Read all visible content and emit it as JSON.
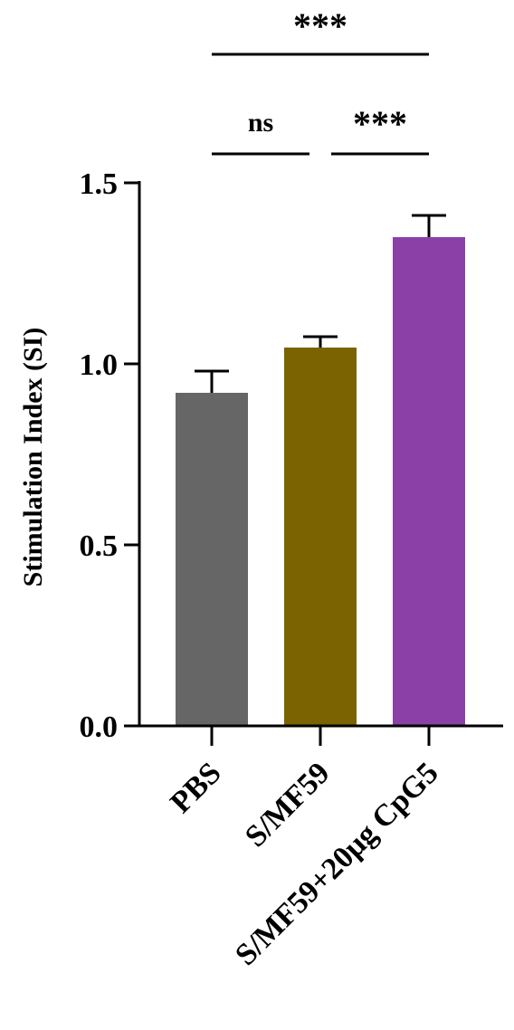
{
  "chart_data": {
    "type": "bar",
    "title": "",
    "xlabel": "",
    "ylabel": "Stimulation Index (SI)",
    "ylim": [
      0,
      1.5
    ],
    "yticks": [
      "0.0",
      "0.5",
      "1.0",
      "1.5"
    ],
    "grid": false,
    "legend": "none",
    "categories": [
      "PBS",
      "S/MF59",
      "S/MF59+20μg CpG5"
    ],
    "values": [
      0.92,
      1.045,
      1.35
    ],
    "errors": [
      0.06,
      0.03,
      0.06
    ],
    "colors": [
      "#666666",
      "#7a6300",
      "#8b40a8"
    ],
    "significance": [
      {
        "from": 0,
        "to": 1,
        "label": "ns"
      },
      {
        "from": 1,
        "to": 2,
        "label": "***"
      },
      {
        "from": 0,
        "to": 2,
        "label": "***"
      }
    ]
  }
}
